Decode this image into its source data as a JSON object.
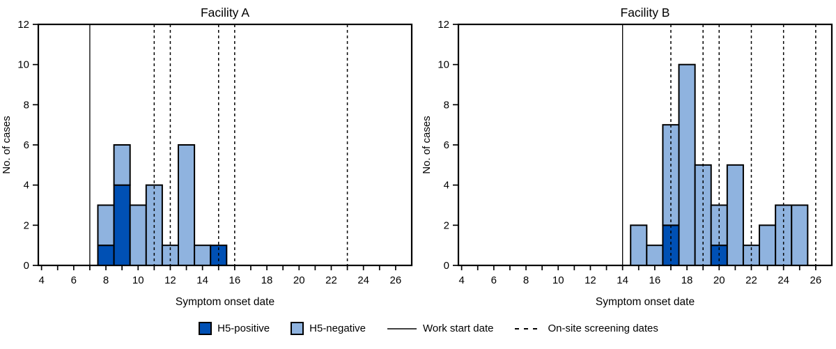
{
  "figure": {
    "colors": {
      "positive": "#0050B4",
      "negative": "#8FB3DF",
      "axis": "#000000"
    },
    "legend": [
      {
        "type": "swatch-positive",
        "label": "H5-positive"
      },
      {
        "type": "swatch-negative",
        "label": "H5-negative"
      },
      {
        "type": "solid-line",
        "label": "Work start date"
      },
      {
        "type": "dashed-line",
        "label": "On-site screening dates"
      }
    ]
  },
  "chart_data": [
    {
      "type": "bar",
      "stacked": true,
      "title": "Facility A",
      "xlabel": "Symptom onset date",
      "ylabel": "No. of cases",
      "xlim": [
        3.8,
        27
      ],
      "ylim": [
        0,
        12
      ],
      "x_ticks_labeled": [
        4,
        6,
        8,
        10,
        12,
        14,
        16,
        18,
        20,
        22,
        24,
        26
      ],
      "x_ticks_minor_every": 1,
      "y_ticks": [
        0,
        2,
        4,
        6,
        8,
        10,
        12
      ],
      "grid": false,
      "categories": [
        8,
        9,
        10,
        11,
        12,
        13,
        14,
        15
      ],
      "series": [
        {
          "name": "H5-positive",
          "values": [
            1,
            4,
            0,
            0,
            0,
            0,
            0,
            1
          ]
        },
        {
          "name": "H5-negative",
          "values": [
            2,
            2,
            3,
            4,
            1,
            6,
            1,
            0
          ]
        }
      ],
      "work_start_date": 7,
      "screening_dates": [
        11,
        12,
        15,
        16,
        23
      ]
    },
    {
      "type": "bar",
      "stacked": true,
      "title": "Facility B",
      "xlabel": "Symptom onset date",
      "ylabel": "No. of cases",
      "xlim": [
        3.8,
        27
      ],
      "ylim": [
        0,
        12
      ],
      "x_ticks_labeled": [
        4,
        6,
        8,
        10,
        12,
        14,
        16,
        18,
        20,
        22,
        24,
        26
      ],
      "x_ticks_minor_every": 1,
      "y_ticks": [
        0,
        2,
        4,
        6,
        8,
        10,
        12
      ],
      "grid": false,
      "categories": [
        15,
        16,
        17,
        18,
        19,
        20,
        21,
        22,
        23,
        24,
        25
      ],
      "series": [
        {
          "name": "H5-positive",
          "values": [
            0,
            0,
            2,
            0,
            0,
            1,
            0,
            0,
            0,
            0,
            0
          ]
        },
        {
          "name": "H5-negative",
          "values": [
            2,
            1,
            5,
            10,
            5,
            2,
            5,
            1,
            2,
            3,
            3
          ]
        }
      ],
      "work_start_date": 14,
      "screening_dates": [
        17,
        19,
        20,
        22,
        24,
        26
      ]
    }
  ]
}
